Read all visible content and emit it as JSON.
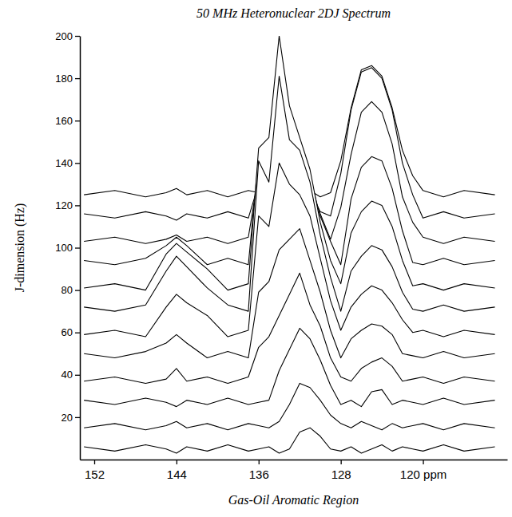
{
  "chart_data": {
    "type": "line",
    "title": "50 MHz Heteronuclear 2DJ Spectrum",
    "xlabel": "Gas-Oil Aromatic Region",
    "ylabel": "J-dimension (Hz)",
    "xlim": [
      153.4,
      111.8
    ],
    "ylim": [
      0,
      200
    ],
    "xticks": [
      152,
      144,
      136,
      128,
      {
        "value": 120,
        "label": "120 ppm"
      }
    ],
    "yticks": [
      20,
      40,
      60,
      80,
      100,
      120,
      140,
      160,
      180,
      200
    ],
    "grid": false,
    "x": [
      153,
      150,
      147,
      145,
      144,
      143,
      141,
      139,
      137,
      136,
      135,
      134,
      133,
      132,
      131,
      130,
      129,
      128,
      127,
      126,
      125,
      124,
      123,
      122,
      121,
      120,
      118,
      116,
      113
    ],
    "series": [
      {
        "color": "#000000",
        "values": [
          6,
          4,
          7,
          5,
          3,
          6,
          4,
          7,
          4,
          5,
          6,
          3,
          5,
          13,
          15,
          11,
          5,
          4,
          6,
          3,
          5,
          7,
          4,
          6,
          5,
          4,
          7,
          4,
          6
        ]
      },
      {
        "color": "#000000",
        "values": [
          15,
          17,
          14,
          16,
          18,
          15,
          17,
          14,
          17,
          16,
          15,
          18,
          26,
          36,
          34,
          28,
          21,
          17,
          15,
          18,
          16,
          14,
          17,
          15,
          16,
          17,
          14,
          17,
          15
        ]
      },
      {
        "color": "#000000",
        "values": [
          28,
          26,
          29,
          27,
          25,
          28,
          26,
          29,
          26,
          27,
          28,
          42,
          52,
          62,
          57,
          47,
          35,
          26,
          28,
          25,
          32,
          33,
          26,
          28,
          27,
          26,
          29,
          26,
          28
        ]
      },
      {
        "color": "#000000",
        "values": [
          37,
          39,
          36,
          38,
          43,
          37,
          39,
          36,
          39,
          53,
          58,
          68,
          78,
          88,
          73,
          63,
          48,
          39,
          37,
          43,
          46,
          48,
          44,
          37,
          38,
          39,
          36,
          39,
          37
        ]
      },
      {
        "color": "#000000",
        "values": [
          50,
          48,
          51,
          55,
          59,
          55,
          48,
          51,
          48,
          79,
          84,
          99,
          104,
          109,
          94,
          79,
          61,
          48,
          57,
          61,
          64,
          63,
          59,
          50,
          49,
          48,
          51,
          48,
          50
        ]
      },
      {
        "color": "#000000",
        "values": [
          59,
          61,
          58,
          72,
          78,
          74,
          68,
          58,
          61,
          115,
          110,
          140,
          130,
          125,
          115,
          95,
          75,
          61,
          72,
          78,
          82,
          80,
          74,
          66,
          60,
          61,
          58,
          61,
          59
        ]
      },
      {
        "color": "#000000",
        "values": [
          72,
          70,
          73,
          89,
          96,
          91,
          81,
          73,
          70,
          141,
          131,
          181,
          151,
          146,
          131,
          106,
          86,
          70,
          89,
          96,
          101,
          99,
          91,
          79,
          71,
          70,
          73,
          70,
          72
        ]
      },
      {
        "color": "#000000",
        "values": [
          81,
          83,
          80,
          97,
          102,
          98,
          90,
          80,
          83,
          147,
          152,
          200,
          167,
          152,
          137,
          112,
          94,
          83,
          107,
          117,
          122,
          120,
          110,
          94,
          82,
          83,
          80,
          83,
          81
        ]
      },
      {
        "color": "#000000",
        "values": [
          94,
          92,
          95,
          101,
          105,
          101,
          92,
          95,
          92,
          143,
          148,
          173,
          158,
          148,
          133,
          115,
          103,
          92,
          123,
          138,
          143,
          141,
          128,
          108,
          93,
          92,
          95,
          92,
          94
        ]
      },
      {
        "color": "#000000",
        "values": [
          103,
          105,
          102,
          104,
          106,
          103,
          105,
          102,
          105,
          134,
          139,
          149,
          144,
          139,
          129,
          116,
          104,
          119,
          144,
          164,
          169,
          164,
          149,
          124,
          112,
          105,
          102,
          105,
          103
        ]
      },
      {
        "color": "#000000",
        "values": [
          116,
          114,
          117,
          115,
          113,
          116,
          114,
          117,
          114,
          130,
          133,
          137,
          135,
          133,
          127,
          117,
          115,
          135,
          165,
          183,
          185,
          180,
          165,
          140,
          125,
          114,
          117,
          114,
          116
        ]
      },
      {
        "color": "#000000",
        "values": [
          125,
          127,
          124,
          126,
          128,
          125,
          127,
          124,
          127,
          126,
          134,
          136,
          134,
          125,
          127,
          124,
          126,
          141,
          166,
          184,
          186,
          181,
          166,
          146,
          134,
          127,
          124,
          127,
          125
        ]
      }
    ]
  }
}
